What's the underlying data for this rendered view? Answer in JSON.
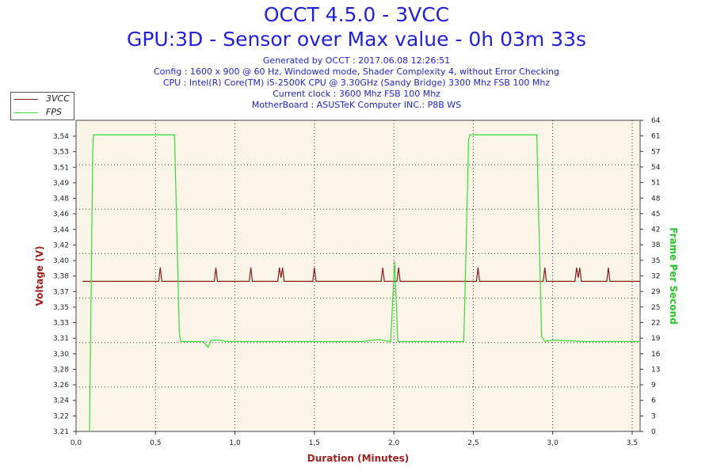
{
  "header": {
    "title": "OCCT 4.5.0 - 3VCC",
    "subtitle": "GPU:3D - Sensor over Max value - 0h 03m 33s",
    "info_lines": [
      "Generated by OCCT : 2017.06.08 12:26:51",
      "Config : 1600 x 900 @ 60 Hz, Windowed mode, Shader Complexity 4, without Error Checking",
      "CPU : Intel(R) Core(TM) i5-2500K CPU @ 3.30GHz (Sandy Bridge) 3300 Mhz FSB 100 Mhz",
      "Current clock : 3600 Mhz FSB 100 Mhz",
      "MotherBoard : ASUSTeK Computer INC.: P8B WS"
    ]
  },
  "legend": {
    "items": [
      {
        "label": "3VCC",
        "color": "#8b1a1a"
      },
      {
        "label": "FPS",
        "color": "#33dd33"
      }
    ]
  },
  "colors": {
    "plot_background": "#fbf5e8",
    "voltage": "#8b1a1a",
    "fps": "#33dd33",
    "axis_text": "#222222",
    "xlabel": "#a02020",
    "ylabel_left": "#a02020",
    "ylabel_right": "#22cc22"
  },
  "chart_data": {
    "type": "line",
    "title": "OCCT 4.5.0 - 3VCC",
    "xlabel": "Duration (Minutes)",
    "ylabel": "Voltage (V)",
    "y2label": "Frame Per Second",
    "xlim": [
      0,
      3.55
    ],
    "ylim": [
      3.21,
      3.55
    ],
    "y2lim": [
      0,
      64
    ],
    "x_ticks": [
      "0,0",
      "0,5",
      "1,0",
      "1,5",
      "2,0",
      "2,5",
      "3,0",
      "3,5"
    ],
    "x_tick_values": [
      0,
      0.5,
      1.0,
      1.5,
      2.0,
      2.5,
      3.0,
      3.5
    ],
    "y_ticks": [
      "3,21",
      "3,22",
      "3,24",
      "3,26",
      "3,28",
      "3,30",
      "3,31",
      "3,33",
      "3,35",
      "3,37",
      "3,38",
      "3,40",
      "3,42",
      "3,44",
      "3,46",
      "3,48",
      "3,49",
      "3,51",
      "3,53",
      "3,54"
    ],
    "y2_ticks": [
      "0",
      "3",
      "6",
      "9",
      "13",
      "16",
      "19",
      "22",
      "25",
      "29",
      "32",
      "35",
      "38",
      "42",
      "45",
      "48",
      "51",
      "54",
      "57",
      "61",
      "64"
    ],
    "grid": true,
    "legend_position": "top-left",
    "series": [
      {
        "name": "3VCC",
        "axis": "left",
        "color": "#8b1a1a",
        "x": [
          0.04,
          0.52,
          0.53,
          0.54,
          0.87,
          0.88,
          0.89,
          1.09,
          1.1,
          1.11,
          1.27,
          1.28,
          1.29,
          1.3,
          1.31,
          1.32,
          1.49,
          1.5,
          1.51,
          1.92,
          1.93,
          1.94,
          2.02,
          2.03,
          2.04,
          2.52,
          2.53,
          2.54,
          2.94,
          2.95,
          2.96,
          3.14,
          3.15,
          3.16,
          3.17,
          3.18,
          3.19,
          3.34,
          3.35,
          3.36,
          3.55
        ],
        "values": [
          3.374,
          3.374,
          3.389,
          3.374,
          3.374,
          3.389,
          3.374,
          3.374,
          3.389,
          3.374,
          3.374,
          3.389,
          3.378,
          3.389,
          3.374,
          3.374,
          3.374,
          3.389,
          3.374,
          3.374,
          3.389,
          3.374,
          3.374,
          3.389,
          3.374,
          3.374,
          3.389,
          3.374,
          3.374,
          3.389,
          3.374,
          3.374,
          3.389,
          3.378,
          3.389,
          3.374,
          3.374,
          3.374,
          3.389,
          3.374,
          3.374
        ]
      },
      {
        "name": "FPS",
        "axis": "right",
        "color": "#33dd33",
        "x": [
          0.085,
          0.095,
          0.105,
          0.11,
          0.62,
          0.635,
          0.65,
          0.66,
          0.7,
          0.8,
          0.83,
          0.85,
          0.9,
          0.95,
          1.0,
          1.3,
          1.6,
          1.8,
          1.9,
          1.98,
          2.005,
          2.015,
          2.025,
          2.035,
          2.05,
          2.1,
          2.3,
          2.44,
          2.455,
          2.47,
          2.48,
          2.5,
          2.9,
          2.915,
          2.93,
          2.95,
          3.0,
          3.2,
          3.4,
          3.55
        ],
        "values": [
          0,
          30,
          58,
          61,
          61,
          40,
          20,
          18.5,
          18.5,
          18.5,
          17.3,
          18.8,
          18.8,
          18.5,
          18.5,
          18.5,
          18.5,
          18.5,
          18.9,
          18.5,
          35,
          27,
          18.5,
          18.5,
          18.5,
          18.5,
          18.5,
          18.5,
          38,
          60,
          61,
          61,
          61,
          40,
          19.5,
          18.5,
          18.8,
          18.5,
          18.5,
          18.5
        ]
      }
    ]
  }
}
